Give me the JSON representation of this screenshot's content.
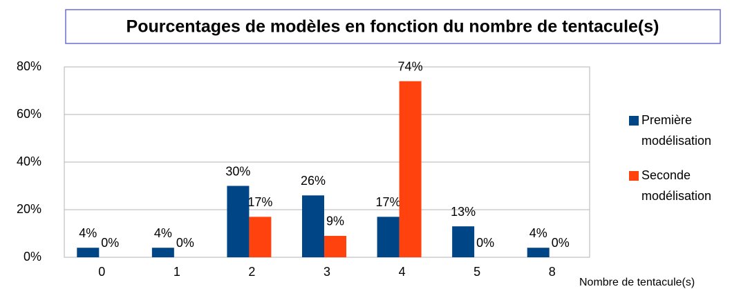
{
  "chart_data": {
    "type": "bar",
    "title": "Pourcentages de modèles en fonction du nombre de tentacule(s)",
    "x_label": "Nombre de tentacule(s)",
    "categories": [
      "0",
      "1",
      "2",
      "3",
      "4",
      "5",
      "8"
    ],
    "series": [
      {
        "name": "Première modélisation",
        "color": "#004586",
        "values": [
          4,
          4,
          30,
          26,
          17,
          13,
          4
        ],
        "value_labels": [
          "4%",
          "4%",
          "30%",
          "26%",
          "17%",
          "13%",
          "4%"
        ]
      },
      {
        "name": "Seconde modélisation",
        "color": "#ff420e",
        "values": [
          0,
          0,
          17,
          9,
          74,
          0,
          0
        ],
        "value_labels": [
          "0%",
          "0%",
          "17%",
          "9%",
          "74%",
          "0%",
          "0%"
        ]
      }
    ],
    "ylim": [
      0,
      80
    ],
    "yticks": [
      {
        "value": 0,
        "label": "0%"
      },
      {
        "value": 20,
        "label": "20%"
      },
      {
        "value": 40,
        "label": "40%"
      },
      {
        "value": 60,
        "label": "60%"
      },
      {
        "value": 80,
        "label": "80%"
      }
    ],
    "grid": true,
    "legend": "right"
  }
}
